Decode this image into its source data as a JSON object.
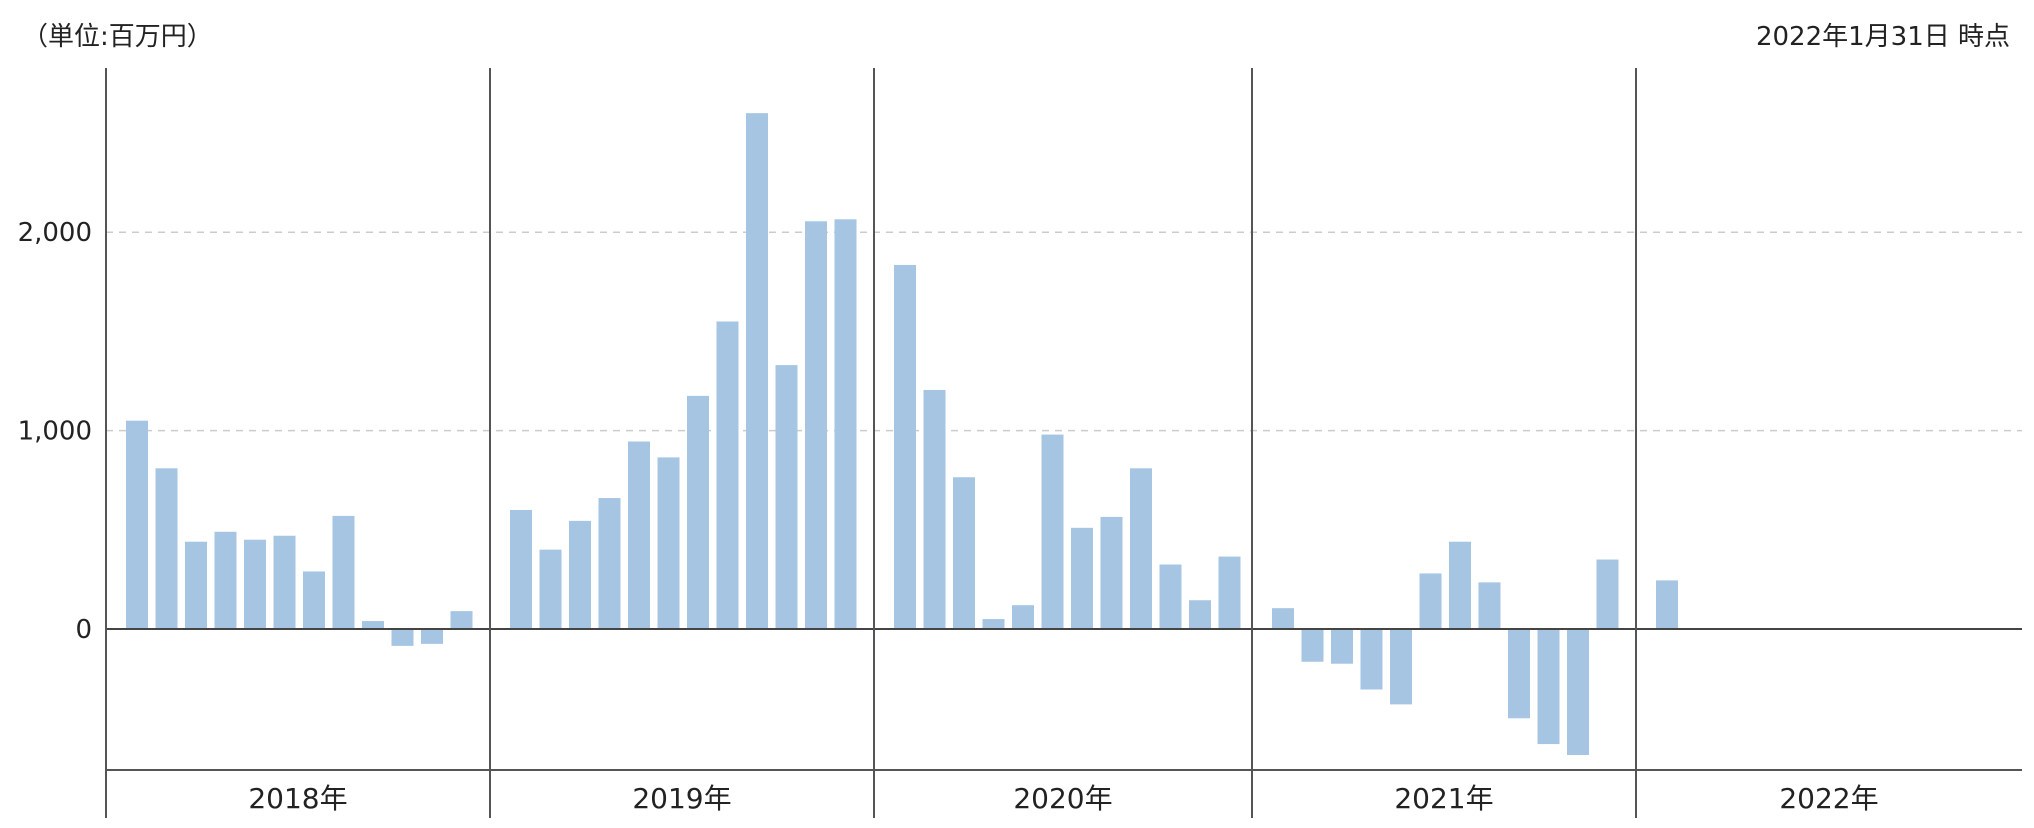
{
  "header": {
    "unit_label": "（単位:百万円）",
    "as_of_label": "2022年1月31日 時点"
  },
  "colors": {
    "bar": "#a5c5e3",
    "axis": "#555555",
    "zero_line": "#444444",
    "grid": "#cccccc"
  },
  "chart_data": {
    "type": "bar",
    "title": "",
    "ylabel": "",
    "xlabel": "",
    "unit": "百万円",
    "ylim": [
      -710,
      2840
    ],
    "yticks": [
      0,
      1000,
      2000
    ],
    "ytick_labels": [
      "0",
      "1,000",
      "2,000"
    ],
    "grid": "horizontal dashed at 1,000 and 2,000",
    "year_groups": [
      {
        "label": "2018年",
        "values": [
          1050,
          810,
          440,
          490,
          450,
          470,
          290,
          570,
          40,
          -85,
          -75,
          90
        ]
      },
      {
        "label": "2019年",
        "values": [
          600,
          400,
          545,
          660,
          945,
          865,
          1175,
          1550,
          2600,
          1330,
          2055,
          2065
        ]
      },
      {
        "label": "2020年",
        "values": [
          1835,
          1205,
          765,
          50,
          120,
          980,
          510,
          565,
          810,
          325,
          145,
          365
        ]
      },
      {
        "label": "2021年",
        "values": [
          105,
          -165,
          -175,
          -305,
          -380,
          280,
          440,
          235,
          -450,
          -580,
          -635,
          350
        ]
      },
      {
        "label": "2022年",
        "values": [
          245
        ]
      }
    ]
  }
}
